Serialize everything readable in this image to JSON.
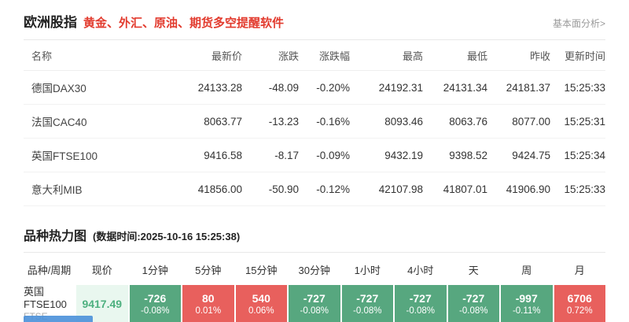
{
  "header": {
    "title": "欧洲股指",
    "subtitle": "黄金、外汇、原油、期货多空提醒软件",
    "fund_link": "基本面分析>"
  },
  "quotes_table": {
    "headers": [
      "名称",
      "最新价",
      "涨跌",
      "涨跌幅",
      "最高",
      "最低",
      "昨收",
      "更新时间"
    ],
    "rows": [
      {
        "name": "德国DAX30",
        "last": "24133.28",
        "change": "-48.09",
        "pct": "-0.20%",
        "high": "24192.31",
        "low": "24131.34",
        "prev": "24181.37",
        "time": "15:25:33"
      },
      {
        "name": "法国CAC40",
        "last": "8063.77",
        "change": "-13.23",
        "pct": "-0.16%",
        "high": "8093.46",
        "low": "8063.76",
        "prev": "8077.00",
        "time": "15:25:31"
      },
      {
        "name": "英国FTSE100",
        "last": "9416.58",
        "change": "-8.17",
        "pct": "-0.09%",
        "high": "9432.19",
        "low": "9398.52",
        "prev": "9424.75",
        "time": "15:25:34"
      },
      {
        "name": "意大利MIB",
        "last": "41856.00",
        "change": "-50.90",
        "pct": "-0.12%",
        "high": "42107.98",
        "low": "41807.01",
        "prev": "41906.90",
        "time": "15:25:33"
      }
    ]
  },
  "heatmap": {
    "title": "品种热力图",
    "data_time": "(数据时间:2025-10-16 15:25:38)",
    "headers": [
      "品种/周期",
      "现价",
      "1分钟",
      "5分钟",
      "15分钟",
      "30分钟",
      "1小时",
      "4小时",
      "天",
      "周",
      "月"
    ],
    "row": {
      "name": "英国FTSE100",
      "code": "FTSE",
      "price": "9417.49",
      "cells": [
        {
          "value": "-726",
          "pct": "-0.08%",
          "color": "green"
        },
        {
          "value": "80",
          "pct": "0.01%",
          "color": "red"
        },
        {
          "value": "540",
          "pct": "0.06%",
          "color": "red"
        },
        {
          "value": "-727",
          "pct": "-0.08%",
          "color": "green"
        },
        {
          "value": "-727",
          "pct": "-0.08%",
          "color": "green"
        },
        {
          "value": "-727",
          "pct": "-0.08%",
          "color": "green"
        },
        {
          "value": "-727",
          "pct": "-0.08%",
          "color": "green"
        },
        {
          "value": "-997",
          "pct": "-0.11%",
          "color": "green"
        },
        {
          "value": "6706",
          "pct": "0.72%",
          "color": "red"
        }
      ]
    }
  },
  "colors": {
    "cell_green": "#57a77f",
    "cell_red": "#e8605d",
    "price_bg": "#e9f7ef",
    "price_text": "#4db07f",
    "change_green_text": "#74b694",
    "accent_red": "#e23b2e"
  }
}
